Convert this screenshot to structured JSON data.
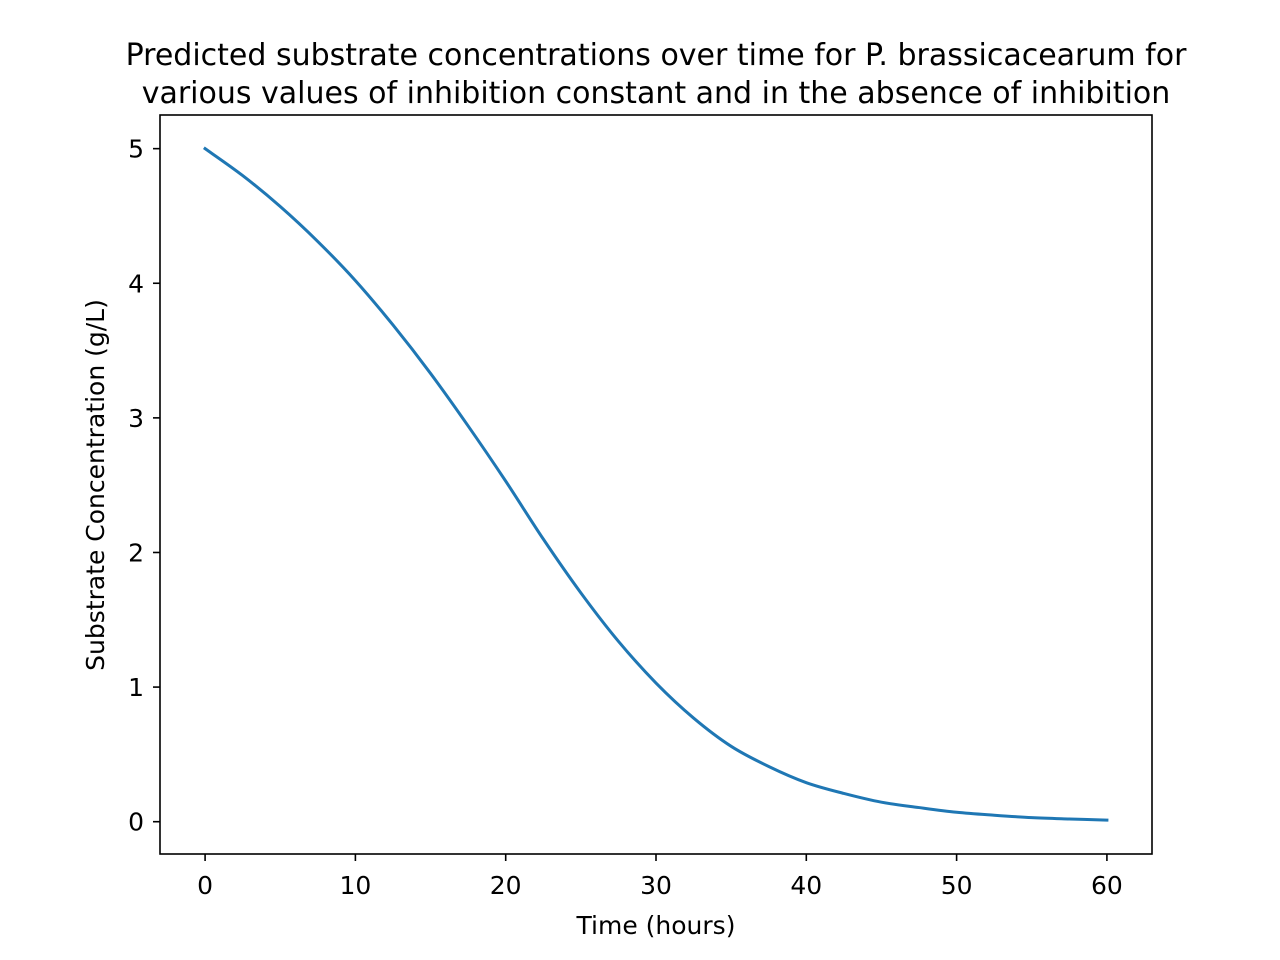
{
  "chart_data": {
    "type": "line",
    "title_lines": [
      "Predicted substrate concentrations over time for P. brassicacearum for",
      "various values of inhibition constant and in the absence of inhibition"
    ],
    "xlabel": "Time (hours)",
    "ylabel": "Substrate Concentration (g/L)",
    "xlim": [
      -3,
      63
    ],
    "ylim": [
      -0.24,
      5.25
    ],
    "xticks": [
      0,
      10,
      20,
      30,
      40,
      50,
      60
    ],
    "xtick_labels": [
      "0",
      "10",
      "20",
      "30",
      "40",
      "50",
      "60"
    ],
    "yticks": [
      0,
      1,
      2,
      3,
      4,
      5
    ],
    "ytick_labels": [
      "0",
      "1",
      "2",
      "3",
      "4",
      "5"
    ],
    "grid": false,
    "line_color": "#1f77b4",
    "series": [
      {
        "x": [
          0,
          2.5,
          5,
          7.5,
          10,
          12.5,
          15,
          17.5,
          20,
          22.5,
          25,
          27.5,
          30,
          32.5,
          35,
          37.5,
          40,
          42.5,
          45,
          47.5,
          50,
          52.5,
          55,
          57.5,
          60
        ],
        "y": [
          5.0,
          4.8,
          4.57,
          4.31,
          4.02,
          3.69,
          3.33,
          2.94,
          2.53,
          2.1,
          1.7,
          1.34,
          1.03,
          0.77,
          0.56,
          0.41,
          0.29,
          0.21,
          0.145,
          0.105,
          0.07,
          0.048,
          0.03,
          0.02,
          0.012
        ]
      }
    ]
  }
}
